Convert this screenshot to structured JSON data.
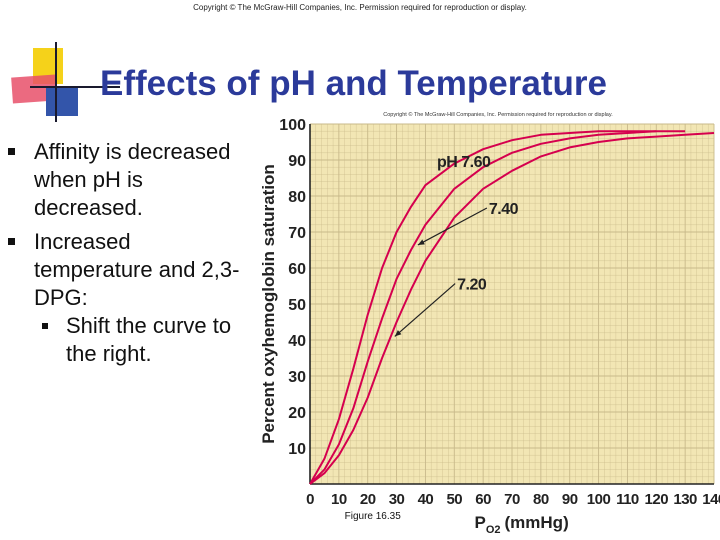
{
  "copyright_top": "Copyright © The McGraw-Hill Companies, Inc. Permission required for reproduction or display.",
  "slide_title": "Effects of pH and Temperature",
  "bullets": {
    "b1": "Affinity is decreased when pH is decreased.",
    "b2": "Increased temperature and 2,3-DPG:",
    "sub1": "Shift the curve to the right."
  },
  "figure": {
    "copyright": "Copyright © The McGraw-Hill Companies, Inc. Permission required for reproduction or display.",
    "caption": "Figure 16.35"
  },
  "colors": {
    "title": "#2b3a9a",
    "plot_background": "#f2e6b4",
    "curve": "#d5004e",
    "grid": "#c8b98a"
  },
  "chart_data": {
    "type": "line",
    "xlabel_main": "P",
    "xlabel_sub": "O2",
    "xlabel_unit": "(mmHg)",
    "ylabel": "Percent oxyhemoglobin saturation",
    "xlim": [
      0,
      140
    ],
    "ylim": [
      0,
      100
    ],
    "xticks": [
      0,
      10,
      20,
      30,
      40,
      50,
      60,
      70,
      80,
      90,
      100,
      110,
      120,
      130,
      140
    ],
    "yticks": [
      10,
      20,
      30,
      40,
      50,
      60,
      70,
      80,
      90,
      100
    ],
    "grid": true,
    "series": [
      {
        "name": "pH 7.60",
        "points": [
          [
            0,
            0
          ],
          [
            5,
            7
          ],
          [
            10,
            18
          ],
          [
            15,
            32
          ],
          [
            20,
            47
          ],
          [
            25,
            60
          ],
          [
            30,
            70
          ],
          [
            35,
            77
          ],
          [
            40,
            83
          ],
          [
            50,
            89
          ],
          [
            60,
            93
          ],
          [
            70,
            95.5
          ],
          [
            80,
            97
          ],
          [
            90,
            97.5
          ],
          [
            100,
            98
          ],
          [
            110,
            98
          ],
          [
            120,
            98
          ]
        ]
      },
      {
        "name": "7.40",
        "points": [
          [
            0,
            0
          ],
          [
            5,
            4
          ],
          [
            10,
            11
          ],
          [
            15,
            21
          ],
          [
            20,
            34
          ],
          [
            25,
            46
          ],
          [
            30,
            57
          ],
          [
            35,
            65
          ],
          [
            40,
            72
          ],
          [
            50,
            82
          ],
          [
            60,
            88
          ],
          [
            70,
            92
          ],
          [
            80,
            94.5
          ],
          [
            90,
            96
          ],
          [
            100,
            97
          ],
          [
            110,
            97.5
          ],
          [
            120,
            98
          ],
          [
            130,
            98
          ]
        ]
      },
      {
        "name": "7.20",
        "points": [
          [
            0,
            0
          ],
          [
            5,
            3
          ],
          [
            10,
            8
          ],
          [
            15,
            15
          ],
          [
            20,
            24
          ],
          [
            25,
            35
          ],
          [
            30,
            45
          ],
          [
            35,
            54
          ],
          [
            40,
            62
          ],
          [
            50,
            74
          ],
          [
            60,
            82
          ],
          [
            70,
            87
          ],
          [
            80,
            91
          ],
          [
            90,
            93.5
          ],
          [
            100,
            95
          ],
          [
            110,
            96
          ],
          [
            120,
            96.5
          ],
          [
            130,
            97
          ],
          [
            140,
            97.5
          ]
        ]
      }
    ],
    "annotations": [
      {
        "text": "pH 7.60",
        "series": 0,
        "arrow": false
      },
      {
        "text": "7.40",
        "series": 1,
        "arrow": true,
        "arrow_to_x": 36
      },
      {
        "text": "7.20",
        "series": 2,
        "arrow": true,
        "arrow_to_x": 28
      }
    ]
  }
}
